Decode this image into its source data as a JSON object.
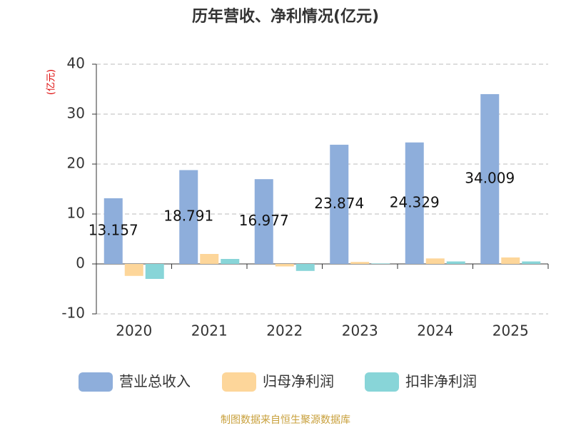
{
  "chart_data": {
    "type": "bar",
    "title": "历年营收、净利情况(亿元)",
    "y_label": "(亿元)",
    "source": "制图数据来自恒生聚源数据库",
    "categories": [
      "2020",
      "2021",
      "2022",
      "2023",
      "2024",
      "2025"
    ],
    "series": [
      {
        "name": "营业总收入",
        "color": "#8eaedb",
        "values": [
          13.157,
          18.791,
          16.977,
          23.874,
          24.329,
          34.009
        ]
      },
      {
        "name": "归母净利润",
        "color": "#fdd69a",
        "values": [
          -2.4,
          2.0,
          -0.5,
          0.4,
          1.1,
          1.3
        ]
      },
      {
        "name": "扣非净利润",
        "color": "#88d5d8",
        "values": [
          -3.0,
          1.0,
          -1.4,
          0.1,
          0.5,
          0.5
        ]
      }
    ],
    "labeled_series": 0,
    "ylim": [
      -10,
      40
    ],
    "yticks": [
      -10,
      0,
      10,
      20,
      30,
      40
    ],
    "grid": true
  }
}
